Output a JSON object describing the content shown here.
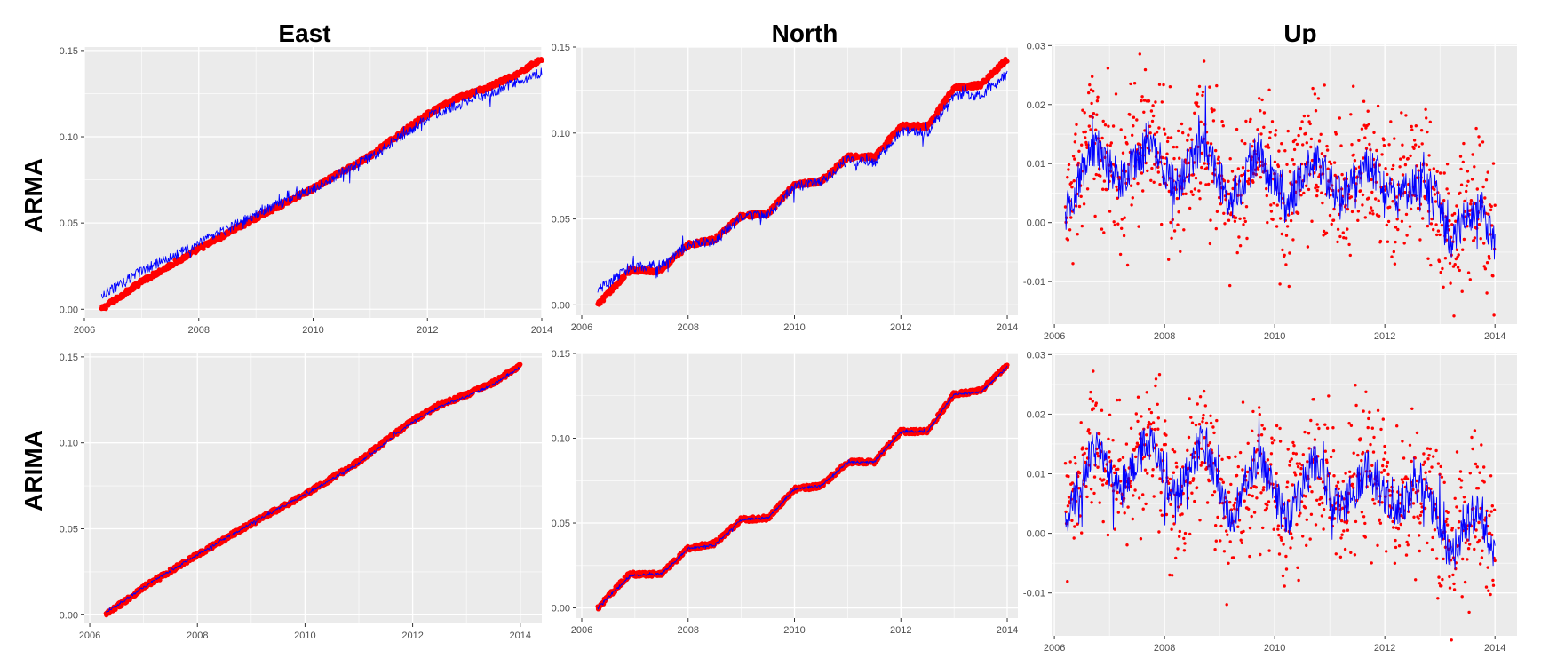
{
  "figure": {
    "columns": [
      "East",
      "North",
      "Up"
    ],
    "rows": [
      "ARMA",
      "ARIMA"
    ],
    "colors": {
      "panel_bg": "#ebebeb",
      "grid": "#ffffff",
      "observed": "#ff0000",
      "fitted": "#0000ff",
      "tick_text": "#4d4d4d"
    }
  },
  "chart_data": [
    {
      "id": "arma-east",
      "type": "line",
      "row": "ARMA",
      "column": "East",
      "xlim": [
        2006,
        2014
      ],
      "xticks": [
        2006,
        2008,
        2010,
        2012,
        2014
      ],
      "ylim": [
        -0.005,
        0.152
      ],
      "yticks": [
        0.0,
        0.05,
        0.1,
        0.15
      ],
      "ytick_labels": [
        "0.00",
        "0.05",
        "0.10",
        "0.15"
      ],
      "series": [
        {
          "name": "observed",
          "style": "points",
          "color": "#ff0000",
          "x": [
            2006.3,
            2007,
            2008,
            2009,
            2010,
            2011,
            2011.7,
            2012,
            2012.5,
            2013,
            2013.5,
            2014
          ],
          "y": [
            0.0,
            0.016,
            0.035,
            0.053,
            0.07,
            0.089,
            0.106,
            0.113,
            0.122,
            0.128,
            0.135,
            0.145
          ]
        },
        {
          "name": "fitted",
          "style": "line",
          "color": "#0000ff",
          "x": [
            2006.3,
            2007,
            2008,
            2009,
            2010,
            2011,
            2011.7,
            2012,
            2012.5,
            2013,
            2013.5,
            2014
          ],
          "y": [
            0.008,
            0.022,
            0.038,
            0.055,
            0.07,
            0.088,
            0.104,
            0.111,
            0.118,
            0.124,
            0.131,
            0.137
          ]
        }
      ]
    },
    {
      "id": "arma-north",
      "type": "line",
      "row": "ARMA",
      "column": "North",
      "xlim": [
        2005.9,
        2014.2
      ],
      "xticks": [
        2006,
        2008,
        2010,
        2012,
        2014
      ],
      "ylim": [
        -0.006,
        0.15
      ],
      "yticks": [
        0.0,
        0.05,
        0.1,
        0.15
      ],
      "ytick_labels": [
        "0.00",
        "0.05",
        "0.10",
        "0.15"
      ],
      "series": [
        {
          "name": "observed",
          "style": "points",
          "color": "#ff0000",
          "x": [
            2006.3,
            2006.9,
            2007.5,
            2008,
            2008.5,
            2009,
            2009.5,
            2010,
            2010.5,
            2011,
            2011.5,
            2012,
            2012.5,
            2013,
            2013.5,
            2014
          ],
          "y": [
            0.0,
            0.02,
            0.02,
            0.035,
            0.038,
            0.052,
            0.053,
            0.07,
            0.072,
            0.086,
            0.086,
            0.104,
            0.104,
            0.126,
            0.128,
            0.143
          ]
        },
        {
          "name": "fitted",
          "style": "line",
          "color": "#0000ff",
          "x": [
            2006.3,
            2006.9,
            2007.5,
            2008,
            2008.5,
            2009,
            2009.5,
            2010,
            2010.5,
            2011,
            2011.5,
            2012,
            2012.5,
            2013,
            2013.5,
            2014
          ],
          "y": [
            0.008,
            0.022,
            0.023,
            0.035,
            0.037,
            0.051,
            0.052,
            0.069,
            0.071,
            0.084,
            0.083,
            0.101,
            0.1,
            0.122,
            0.122,
            0.134
          ]
        }
      ]
    },
    {
      "id": "arma-up",
      "type": "scatter",
      "row": "ARMA",
      "column": "Up",
      "xlim": [
        2005.95,
        2014.4
      ],
      "xticks": [
        2006,
        2008,
        2010,
        2012,
        2014
      ],
      "ylim": [
        -0.0172,
        0.0302
      ],
      "yticks": [
        -0.01,
        0.0,
        0.01,
        0.02,
        0.03
      ],
      "ytick_labels": [
        "-0.01",
        "0.00",
        "0.01",
        "0.02",
        "0.03"
      ],
      "series": [
        {
          "name": "observed",
          "style": "points",
          "color": "#ff0000",
          "x": [
            2006.2,
            2006.7,
            2007.2,
            2007.7,
            2008.2,
            2008.7,
            2009.2,
            2009.7,
            2010.2,
            2010.7,
            2011.2,
            2011.7,
            2012.2,
            2012.7,
            2013.2,
            2013.7,
            2014
          ],
          "y": [
            0.001,
            0.015,
            0.007,
            0.016,
            0.006,
            0.016,
            0.002,
            0.013,
            0.002,
            0.012,
            0.004,
            0.011,
            0.004,
            0.009,
            -0.004,
            0.005,
            -0.004
          ]
        },
        {
          "name": "fitted",
          "style": "line",
          "color": "#0000ff",
          "x": [
            2006.2,
            2006.7,
            2007.2,
            2007.7,
            2008.2,
            2008.7,
            2009.2,
            2009.7,
            2010.2,
            2010.7,
            2011.2,
            2011.7,
            2012.2,
            2012.7,
            2013.2,
            2013.7,
            2014
          ],
          "y": [
            0.001,
            0.013,
            0.007,
            0.014,
            0.006,
            0.014,
            0.003,
            0.012,
            0.003,
            0.011,
            0.004,
            0.01,
            0.004,
            0.008,
            -0.003,
            0.004,
            -0.004
          ]
        }
      ]
    },
    {
      "id": "arima-east",
      "type": "line",
      "row": "ARIMA",
      "column": "East",
      "xlim": [
        2005.9,
        2014.4
      ],
      "xticks": [
        2006,
        2008,
        2010,
        2012,
        2014
      ],
      "ylim": [
        -0.005,
        0.152
      ],
      "yticks": [
        0.0,
        0.05,
        0.1,
        0.15
      ],
      "ytick_labels": [
        "0.00",
        "0.05",
        "0.10",
        "0.15"
      ],
      "series": [
        {
          "name": "observed",
          "style": "points",
          "color": "#ff0000",
          "x": [
            2006.3,
            2007,
            2008,
            2009,
            2010,
            2011,
            2011.7,
            2012,
            2012.5,
            2013,
            2013.5,
            2014
          ],
          "y": [
            0.0,
            0.016,
            0.035,
            0.053,
            0.07,
            0.089,
            0.106,
            0.113,
            0.122,
            0.128,
            0.135,
            0.145
          ]
        },
        {
          "name": "fitted",
          "style": "line",
          "color": "#0000ff",
          "x": [
            2006.3,
            2007,
            2008,
            2009,
            2010,
            2011,
            2011.7,
            2012,
            2012.5,
            2013,
            2013.5,
            2014
          ],
          "y": [
            0.001,
            0.016,
            0.035,
            0.053,
            0.07,
            0.088,
            0.105,
            0.112,
            0.121,
            0.127,
            0.134,
            0.144
          ]
        }
      ]
    },
    {
      "id": "arima-north",
      "type": "line",
      "row": "ARIMA",
      "column": "North",
      "xlim": [
        2005.9,
        2014.2
      ],
      "xticks": [
        2006,
        2008,
        2010,
        2012,
        2014
      ],
      "ylim": [
        -0.006,
        0.15
      ],
      "yticks": [
        0.0,
        0.05,
        0.1,
        0.15
      ],
      "ytick_labels": [
        "0.00",
        "0.05",
        "0.10",
        "0.15"
      ],
      "series": [
        {
          "name": "observed",
          "style": "points",
          "color": "#ff0000",
          "x": [
            2006.3,
            2006.9,
            2007.5,
            2008,
            2008.5,
            2009,
            2009.5,
            2010,
            2010.5,
            2011,
            2011.5,
            2012,
            2012.5,
            2013,
            2013.5,
            2014
          ],
          "y": [
            0.0,
            0.02,
            0.02,
            0.035,
            0.038,
            0.052,
            0.053,
            0.07,
            0.072,
            0.086,
            0.086,
            0.104,
            0.104,
            0.126,
            0.128,
            0.143
          ]
        },
        {
          "name": "fitted",
          "style": "line",
          "color": "#0000ff",
          "x": [
            2006.3,
            2006.9,
            2007.5,
            2008,
            2008.5,
            2009,
            2009.5,
            2010,
            2010.5,
            2011,
            2011.5,
            2012,
            2012.5,
            2013,
            2013.5,
            2014
          ],
          "y": [
            0.0,
            0.019,
            0.02,
            0.035,
            0.037,
            0.052,
            0.053,
            0.07,
            0.072,
            0.086,
            0.086,
            0.104,
            0.104,
            0.126,
            0.127,
            0.142
          ]
        }
      ]
    },
    {
      "id": "arima-up",
      "type": "scatter",
      "row": "ARIMA",
      "column": "Up",
      "xlim": [
        2005.95,
        2014.4
      ],
      "xticks": [
        2006,
        2008,
        2010,
        2012,
        2014
      ],
      "ylim": [
        -0.0172,
        0.0302
      ],
      "yticks": [
        -0.01,
        0.0,
        0.01,
        0.02,
        0.03
      ],
      "ytick_labels": [
        "-0.01",
        "0.00",
        "0.01",
        "0.02",
        "0.03"
      ],
      "series": [
        {
          "name": "observed",
          "style": "points",
          "color": "#ff0000",
          "x": [
            2006.2,
            2006.7,
            2007.2,
            2007.7,
            2008.2,
            2008.7,
            2009.2,
            2009.7,
            2010.2,
            2010.7,
            2011.2,
            2011.7,
            2012.2,
            2012.7,
            2013.2,
            2013.7,
            2014
          ],
          "y": [
            0.001,
            0.015,
            0.007,
            0.016,
            0.006,
            0.016,
            0.002,
            0.013,
            0.002,
            0.012,
            0.004,
            0.011,
            0.004,
            0.009,
            -0.004,
            0.005,
            -0.004
          ]
        },
        {
          "name": "fitted",
          "style": "line",
          "color": "#0000ff",
          "x": [
            2006.2,
            2006.7,
            2007.2,
            2007.7,
            2008.2,
            2008.7,
            2009.2,
            2009.7,
            2010.2,
            2010.7,
            2011.2,
            2011.7,
            2012.2,
            2012.7,
            2013.2,
            2013.7,
            2014
          ],
          "y": [
            0.001,
            0.015,
            0.007,
            0.016,
            0.006,
            0.016,
            0.002,
            0.013,
            0.002,
            0.012,
            0.004,
            0.011,
            0.004,
            0.009,
            -0.004,
            0.005,
            -0.004
          ]
        }
      ]
    }
  ]
}
